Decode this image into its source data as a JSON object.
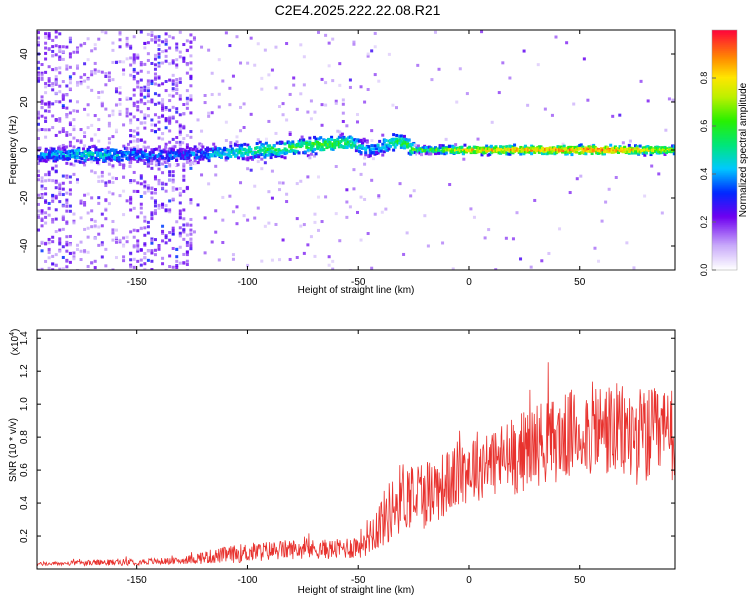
{
  "title": "C2E4.2025.222.22.08.R21",
  "colors": {
    "spectro_low": "#b89cf0",
    "spectro_mid": "#6a00f0",
    "snr_line": "#e8322e",
    "background": "#ffffff"
  },
  "chart_data": [
    {
      "type": "heatmap",
      "xlabel": "Height of straight line (km)",
      "ylabel": "Frequency (Hz)",
      "xlim": [
        -195,
        93
      ],
      "ylim": [
        -50,
        50
      ],
      "xticks": [
        -150,
        -100,
        -50,
        0,
        50
      ],
      "xtick_labels": [
        "-150",
        "-100",
        "-50",
        "0",
        "50"
      ],
      "yticks": [
        -40,
        -20,
        0,
        20,
        40
      ],
      "ytick_labels": [
        "-40",
        "-20",
        "0",
        "20",
        "40"
      ],
      "colorbar": {
        "label": "Normalized spectral amplitude",
        "range": [
          0,
          1
        ],
        "ticks": [
          0.0,
          0.2,
          0.4,
          0.6,
          0.8
        ],
        "tick_labels": [
          "0.0",
          "0.2",
          "0.4",
          "0.6",
          "0.8"
        ]
      },
      "ridge": [
        {
          "x": -195,
          "f": -2,
          "amp": 0.35
        },
        {
          "x": -170,
          "f": -2,
          "amp": 0.45
        },
        {
          "x": -150,
          "f": -2,
          "amp": 0.35
        },
        {
          "x": -130,
          "f": -2,
          "amp": 0.3
        },
        {
          "x": -110,
          "f": -1,
          "amp": 0.45
        },
        {
          "x": -90,
          "f": 0,
          "amp": 0.55
        },
        {
          "x": -70,
          "f": 2,
          "amp": 0.6
        },
        {
          "x": -55,
          "f": 3,
          "amp": 0.55
        },
        {
          "x": -45,
          "f": 0,
          "amp": 0.35
        },
        {
          "x": -32,
          "f": 4,
          "amp": 0.55
        },
        {
          "x": -25,
          "f": 0,
          "amp": 0.6
        },
        {
          "x": 0,
          "f": 0,
          "amp": 0.85
        },
        {
          "x": 30,
          "f": 0,
          "amp": 0.9
        },
        {
          "x": 60,
          "f": 0,
          "amp": 0.95
        },
        {
          "x": 93,
          "f": 0,
          "amp": 0.75
        }
      ],
      "noise_region_x": [
        -195,
        -125
      ],
      "broadband_segments": [
        {
          "x_from": -195,
          "x_to": -180
        },
        {
          "x_from": -155,
          "x_to": -125
        }
      ]
    },
    {
      "type": "line",
      "xlabel": "Height of straight line (km)",
      "ylabel": "SNR (10 * v/v)",
      "y_multiplier": "(x10",
      "y_multiplier_exp": "4",
      "y_multiplier_close": ")",
      "xlim": [
        -195,
        93
      ],
      "ylim": [
        0,
        1.45
      ],
      "xticks": [
        -150,
        -100,
        -50,
        0,
        50
      ],
      "xtick_labels": [
        "-150",
        "-100",
        "-50",
        "0",
        "50"
      ],
      "yticks": [
        0.2,
        0.4,
        0.6,
        0.8,
        1.0,
        1.2,
        1.4
      ],
      "ytick_labels": [
        "0.2",
        "0.4",
        "0.6",
        "0.8",
        "1.0",
        "1.2",
        "1.4"
      ],
      "series": [
        {
          "envelope_x": [
            -195,
            -160,
            -130,
            -120,
            -100,
            -80,
            -60,
            -50,
            -40,
            -35,
            -30,
            -20,
            -10,
            0,
            10,
            20,
            30,
            40,
            50,
            60,
            70,
            80,
            93
          ],
          "envelope_mean": [
            0.03,
            0.04,
            0.05,
            0.07,
            0.1,
            0.12,
            0.12,
            0.14,
            0.28,
            0.36,
            0.45,
            0.46,
            0.52,
            0.62,
            0.65,
            0.68,
            0.76,
            0.78,
            0.84,
            0.85,
            0.82,
            0.8,
            0.8
          ],
          "envelope_spread": [
            0.01,
            0.02,
            0.02,
            0.04,
            0.06,
            0.06,
            0.06,
            0.08,
            0.16,
            0.2,
            0.22,
            0.22,
            0.2,
            0.22,
            0.22,
            0.24,
            0.26,
            0.26,
            0.28,
            0.3,
            0.3,
            0.3,
            0.3
          ]
        }
      ]
    }
  ]
}
